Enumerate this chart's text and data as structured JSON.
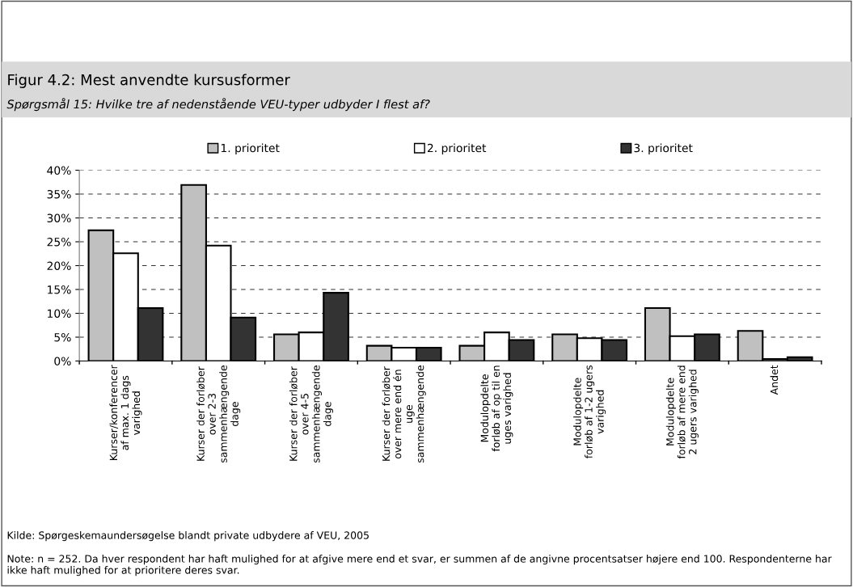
{
  "chart_data": {
    "type": "bar",
    "title": "Figur 4.2: Mest anvendte kursusformer",
    "subtitle": "Spørgsmål 15: Hvilke tre af nedenstående VEU-typer udbyder I flest af?",
    "categories": [
      "Kurser/konferencer\naf max. 1 dags\nvarighed",
      "Kurser der forløber\nover 2-3\nsammenhængende\ndage",
      "Kurser der forløber\nover 4-5\nsammenhængende\ndage",
      "Kurser der forløber\nover mere end én\nuge\nsammenhængende",
      "Modulopdelte\nforløb af op til en\nuges varighed",
      "Modulopdelte\nforløb af 1-2 ugers\nvarighed",
      "Modulopdelte\nforløb af mere end\n2 ugers varighed",
      "Andet"
    ],
    "series": [
      {
        "name": "1. prioritet",
        "color": "#c0c0c0",
        "values": [
          27.4,
          36.9,
          5.6,
          3.2,
          3.2,
          5.6,
          11.1,
          6.3
        ]
      },
      {
        "name": "2. prioritet",
        "color": "#ffffff",
        "values": [
          22.6,
          24.2,
          6.0,
          2.8,
          6.0,
          4.8,
          5.2,
          0.4
        ]
      },
      {
        "name": "3. prioritet",
        "color": "#333333",
        "values": [
          11.1,
          9.1,
          14.3,
          2.8,
          4.4,
          4.4,
          5.6,
          0.8
        ]
      }
    ],
    "ylim": [
      0,
      40
    ],
    "yticks": [
      {
        "value": 0,
        "label": "0%"
      },
      {
        "value": 5,
        "label": "5%"
      },
      {
        "value": 10,
        "label": "10%"
      },
      {
        "value": 15,
        "label": "15%"
      },
      {
        "value": 20,
        "label": "20%"
      },
      {
        "value": 25,
        "label": "25%"
      },
      {
        "value": 30,
        "label": "30%"
      },
      {
        "value": 35,
        "label": "35%"
      },
      {
        "value": 40,
        "label": "40%"
      }
    ],
    "grid": "y",
    "legend": "top",
    "annotations": [
      "Kilde: Spørgeskemaundersøgelse blandt private udbydere af VEU, 2005",
      "Note: n = 252. Da hver respondent har haft mulighed for at afgive mere end et svar, er summen af de angivne procentsatser højere end 100. Respondenterne har ikke haft mulighed for at prioritere deres svar."
    ]
  }
}
